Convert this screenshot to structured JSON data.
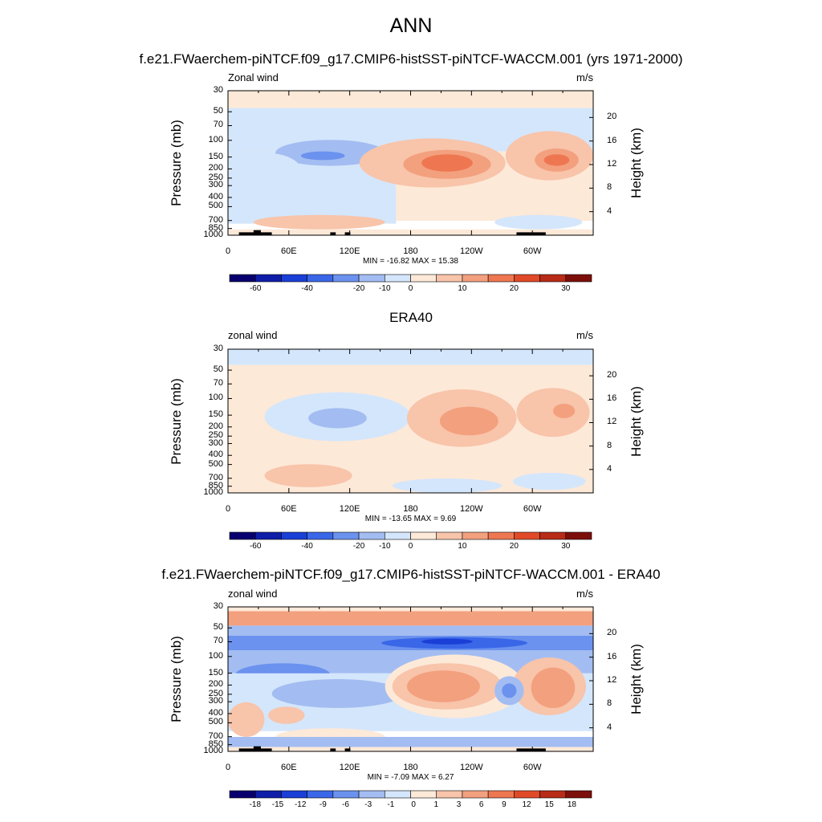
{
  "figure": {
    "title": "ANN"
  },
  "chart_data": [
    {
      "type": "heatmap",
      "title": "f.e21.FWaerchem-piNTCF.f09_g17.CMIP6-histSST-piNTCF-WACCM.001 (yrs 1971-2000)",
      "left_label": "Zonal wind",
      "right_label": "m/s",
      "ylabel": "Pressure (mb)",
      "ylabel_right": "Height (km)",
      "x_ticks": [
        "0",
        "60E",
        "120E",
        "180",
        "120W",
        "60W"
      ],
      "y_ticks": [
        "30",
        "50",
        "70",
        "100",
        "150",
        "200",
        "250",
        "300",
        "400",
        "500",
        "700",
        "850",
        "1000"
      ],
      "y_ticks_right": [
        "20",
        "16",
        "12",
        "8",
        "4"
      ],
      "minmax": "MIN = -16.82  MAX =  15.38",
      "colorbar_ticks": [
        "-60",
        "-40",
        "-20",
        "-10",
        "0",
        "10",
        "20",
        "30"
      ]
    },
    {
      "type": "heatmap",
      "title": "ERA40",
      "left_label": "zonal wind",
      "right_label": "m/s",
      "ylabel": "Pressure (mb)",
      "ylabel_right": "Height (km)",
      "x_ticks": [
        "0",
        "60E",
        "120E",
        "180",
        "120W",
        "60W"
      ],
      "y_ticks": [
        "30",
        "50",
        "70",
        "100",
        "150",
        "200",
        "250",
        "300",
        "400",
        "500",
        "700",
        "850",
        "1000"
      ],
      "y_ticks_right": [
        "20",
        "16",
        "12",
        "8",
        "4"
      ],
      "minmax": "MIN = -13.65  MAX =   9.69",
      "colorbar_ticks": [
        "-60",
        "-40",
        "-20",
        "-10",
        "0",
        "10",
        "20",
        "30"
      ]
    },
    {
      "type": "heatmap",
      "title": "f.e21.FWaerchem-piNTCF.f09_g17.CMIP6-histSST-piNTCF-WACCM.001 - ERA40",
      "left_label": "zonal wind",
      "right_label": "m/s",
      "ylabel": "Pressure (mb)",
      "ylabel_right": "Height (km)",
      "x_ticks": [
        "0",
        "60E",
        "120E",
        "180",
        "120W",
        "60W"
      ],
      "y_ticks": [
        "30",
        "50",
        "70",
        "100",
        "150",
        "200",
        "250",
        "300",
        "400",
        "500",
        "700",
        "850",
        "1000"
      ],
      "y_ticks_right": [
        "20",
        "16",
        "12",
        "8",
        "4"
      ],
      "minmax": "MIN =  -7.09  MAX =   6.27",
      "colorbar_ticks": [
        "-18",
        "-15",
        "-12",
        "-9",
        "-6",
        "-3",
        "-1",
        "0",
        "1",
        "3",
        "6",
        "9",
        "12",
        "15",
        "18"
      ]
    }
  ],
  "palette": [
    "#08006e",
    "#0f1ea8",
    "#1a3fd6",
    "#3a67e8",
    "#6b92ee",
    "#a3bdf2",
    "#d4e6fb",
    "#fde9d8",
    "#f8c4aa",
    "#f3a07e",
    "#ee7751",
    "#e14a28",
    "#b82b17",
    "#7d0f0b"
  ]
}
